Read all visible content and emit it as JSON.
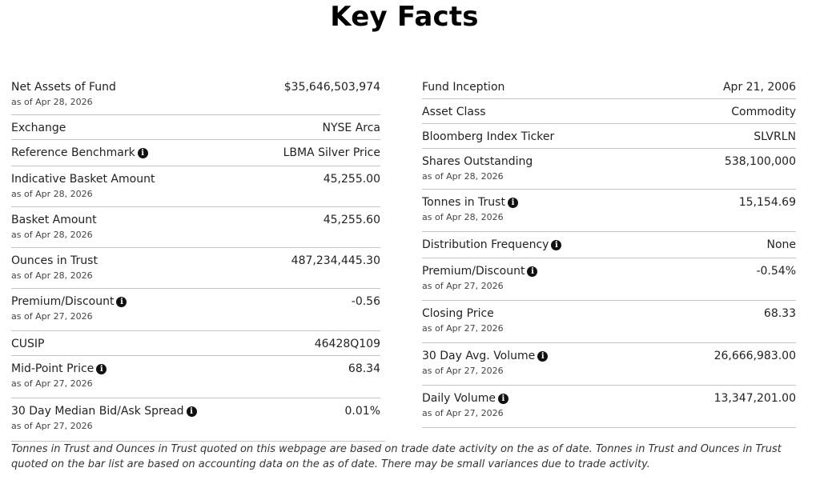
{
  "title": "Key Facts",
  "info_icon_glyph": "i",
  "left_facts": [
    {
      "label": "Net Assets of Fund",
      "value": "$35,646,503,974",
      "subtext": "as of Apr 28, 2026",
      "info_icon": false
    },
    {
      "label": "Exchange",
      "value": "NYSE Arca",
      "subtext": "",
      "info_icon": false
    },
    {
      "label": "Reference Benchmark",
      "value": "LBMA Silver Price",
      "subtext": "",
      "info_icon": true
    },
    {
      "label": "Indicative Basket Amount",
      "value": "45,255.00",
      "subtext": "as of Apr 28, 2026",
      "info_icon": false
    },
    {
      "label": "Basket Amount",
      "value": "45,255.60",
      "subtext": "as of Apr 28, 2026",
      "info_icon": false
    },
    {
      "label": "Ounces in Trust",
      "value": "487,234,445.30",
      "subtext": "as of Apr 28, 2026",
      "info_icon": false
    },
    {
      "label": "Premium/Discount",
      "value": "-0.56",
      "subtext": "as of Apr 27, 2026",
      "info_icon": true
    },
    {
      "label": "CUSIP",
      "value": "46428Q109",
      "subtext": "",
      "info_icon": false
    },
    {
      "label": "Mid-Point Price",
      "value": "68.34",
      "subtext": "as of Apr 27, 2026",
      "info_icon": true
    },
    {
      "label": "30 Day Median Bid/Ask Spread",
      "value": "0.01%",
      "subtext": "as of Apr 27, 2026",
      "info_icon": true
    }
  ],
  "right_facts": [
    {
      "label": "Fund Inception",
      "value": "Apr 21, 2006",
      "subtext": "",
      "info_icon": false
    },
    {
      "label": "Asset Class",
      "value": "Commodity",
      "subtext": "",
      "info_icon": false
    },
    {
      "label": "Bloomberg Index Ticker",
      "value": "SLVRLN",
      "subtext": "",
      "info_icon": false
    },
    {
      "label": "Shares Outstanding",
      "value": "538,100,000",
      "subtext": "as of Apr 28, 2026",
      "info_icon": false
    },
    {
      "label": "Tonnes in Trust",
      "value": "15,154.69",
      "subtext": "as of Apr 28, 2026",
      "info_icon": true
    },
    {
      "label": "Distribution Frequency",
      "value": "None",
      "subtext": "",
      "info_icon": true
    },
    {
      "label": "Premium/Discount",
      "value": "-0.54%",
      "subtext": "as of Apr 27, 2026",
      "info_icon": true
    },
    {
      "label": "Closing Price",
      "value": "68.33",
      "subtext": "as of Apr 27, 2026",
      "info_icon": false
    },
    {
      "label": "30 Day Avg. Volume",
      "value": "26,666,983.00",
      "subtext": "as of Apr 27, 2026",
      "info_icon": true
    },
    {
      "label": "Daily Volume",
      "value": "13,347,201.00",
      "subtext": "as of Apr 27, 2026",
      "info_icon": true
    }
  ],
  "footnote": "Tonnes in Trust and Ounces in Trust quoted on this webpage are based on trade date activity on the as of date. Tonnes in Trust and Ounces in Trust quoted on the bar list are based on accounting data on the as of date. There may be small variances due to trade activity."
}
